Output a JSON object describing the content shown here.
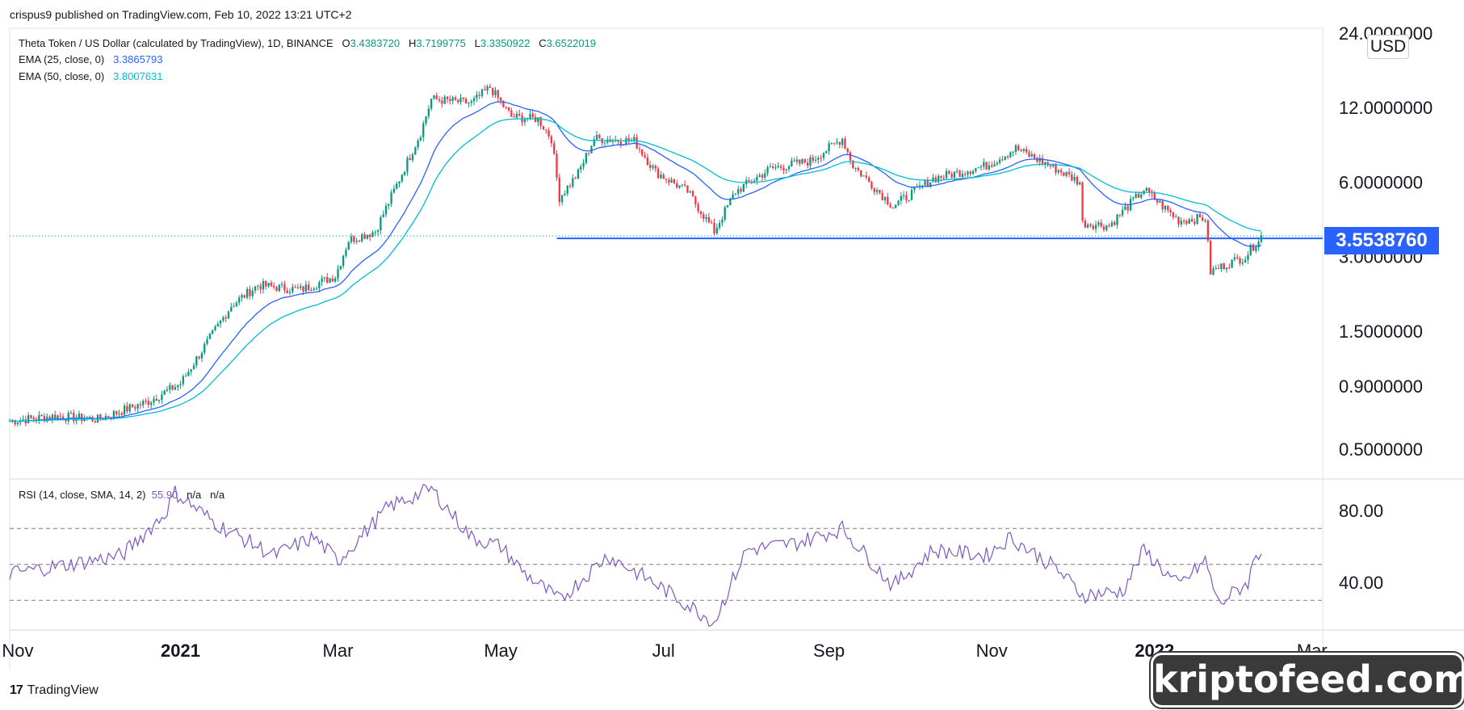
{
  "publisher": {
    "text": "crispus9 published on TradingView.com, Feb 10, 2022 13:21 UTC+2"
  },
  "legend": {
    "symbol": "Theta Token / US Dollar (calculated by TradingView), 1D, BINANCE",
    "o_label": "O",
    "o_value": "3.4383720",
    "h_label": "H",
    "h_value": "3.7199775",
    "l_label": "L",
    "l_value": "3.3350922",
    "c_label": "C",
    "c_value": "3.6522019",
    "ema25_label": "EMA (25, close, 0)",
    "ema25_value": "3.3865793",
    "ema50_label": "EMA (50, close, 0)",
    "ema50_value": "3.8007631",
    "rsi_label": "RSI (14, close, SMA, 14, 2)",
    "rsi_value": "55.90",
    "rsi_na1": "n/a",
    "rsi_na2": "n/a"
  },
  "price_axis": {
    "currency": "USD",
    "current_price": "3.5538760",
    "labels": [
      "24.0000000",
      "12.0000000",
      "6.0000000",
      "3.0000000",
      "1.5000000",
      "0.9000000",
      "0.5000000"
    ]
  },
  "rsi_axis": {
    "labels": [
      "80.00",
      "40.00"
    ]
  },
  "time_axis": {
    "labels": [
      {
        "text": "Nov",
        "bold": false
      },
      {
        "text": "2021",
        "bold": true
      },
      {
        "text": "Mar",
        "bold": false
      },
      {
        "text": "May",
        "bold": false
      },
      {
        "text": "Jul",
        "bold": false
      },
      {
        "text": "Sep",
        "bold": false
      },
      {
        "text": "Nov",
        "bold": false
      },
      {
        "text": "2022",
        "bold": true
      },
      {
        "text": "Mar",
        "bold": false
      }
    ]
  },
  "branding": {
    "tradingview": "TradingView",
    "watermark": "kriptofeed.com"
  },
  "colors": {
    "up": "#089981",
    "down": "#f23645",
    "ema25": "#2962ff",
    "ema50": "#00bcd4",
    "rsi": "#7e57c2",
    "support": "#2962ff"
  },
  "chart_data": {
    "type": "candlestick",
    "title": "Theta Token / US Dollar (calculated by TradingView), 1D, BINANCE",
    "y_scale": "log",
    "ylim": [
      0.42,
      26
    ],
    "support_level": 3.553876,
    "price_path": [
      [
        "2020-10-29",
        0.65
      ],
      [
        "2020-11-15",
        0.68
      ],
      [
        "2020-12-01",
        0.66
      ],
      [
        "2020-12-20",
        0.78
      ],
      [
        "2021-01-01",
        0.92
      ],
      [
        "2021-01-10",
        1.3
      ],
      [
        "2021-01-20",
        1.9
      ],
      [
        "2021-01-30",
        2.3
      ],
      [
        "2021-02-15",
        2.2
      ],
      [
        "2021-02-28",
        2.5
      ],
      [
        "2021-03-05",
        3.5
      ],
      [
        "2021-03-15",
        3.8
      ],
      [
        "2021-03-25",
        6.5
      ],
      [
        "2021-04-01",
        9.5
      ],
      [
        "2021-04-05",
        13.0
      ],
      [
        "2021-04-20",
        12.5
      ],
      [
        "2021-04-27",
        14.5
      ],
      [
        "2021-05-05",
        11.0
      ],
      [
        "2021-05-15",
        10.8
      ],
      [
        "2021-05-20",
        9.0
      ],
      [
        "2021-05-23",
        5.2
      ],
      [
        "2021-05-30",
        6.5
      ],
      [
        "2021-06-05",
        9.0
      ],
      [
        "2021-06-20",
        8.8
      ],
      [
        "2021-06-28",
        6.6
      ],
      [
        "2021-07-10",
        5.5
      ],
      [
        "2021-07-20",
        3.8
      ],
      [
        "2021-07-28",
        5.5
      ],
      [
        "2021-08-10",
        6.8
      ],
      [
        "2021-08-25",
        7.3
      ],
      [
        "2021-09-06",
        9.0
      ],
      [
        "2021-09-10",
        7.0
      ],
      [
        "2021-09-25",
        4.8
      ],
      [
        "2021-10-10",
        6.2
      ],
      [
        "2021-10-30",
        7.0
      ],
      [
        "2021-11-10",
        8.2
      ],
      [
        "2021-11-25",
        6.8
      ],
      [
        "2021-12-04",
        6.0
      ],
      [
        "2021-12-05",
        4.1
      ],
      [
        "2021-12-15",
        4.0
      ],
      [
        "2021-12-28",
        5.6
      ],
      [
        "2022-01-10",
        4.2
      ],
      [
        "2022-01-20",
        4.3
      ],
      [
        "2022-01-22",
        2.6
      ],
      [
        "2022-01-28",
        2.8
      ],
      [
        "2022-02-04",
        3.0
      ],
      [
        "2022-02-10",
        3.65
      ]
    ],
    "rsi": {
      "ylim": [
        10,
        100
      ],
      "levels": [
        70,
        50,
        30
      ],
      "path": [
        [
          "2020-10-29",
          45
        ],
        [
          "2020-11-20",
          50
        ],
        [
          "2020-12-10",
          55
        ],
        [
          "2020-12-26",
          78
        ],
        [
          "2020-12-30",
          90
        ],
        [
          "2021-01-15",
          72
        ],
        [
          "2021-02-05",
          55
        ],
        [
          "2021-02-20",
          65
        ],
        [
          "2021-03-01",
          52
        ],
        [
          "2021-03-20",
          82
        ],
        [
          "2021-04-05",
          92
        ],
        [
          "2021-04-20",
          65
        ],
        [
          "2021-05-01",
          60
        ],
        [
          "2021-05-10",
          45
        ],
        [
          "2021-05-23",
          30
        ],
        [
          "2021-06-10",
          55
        ],
        [
          "2021-06-25",
          42
        ],
        [
          "2021-07-20",
          18
        ],
        [
          "2021-08-01",
          58
        ],
        [
          "2021-08-20",
          62
        ],
        [
          "2021-09-06",
          70
        ],
        [
          "2021-09-25",
          38
        ],
        [
          "2021-10-10",
          58
        ],
        [
          "2021-10-30",
          55
        ],
        [
          "2021-11-08",
          65
        ],
        [
          "2021-11-25",
          48
        ],
        [
          "2021-12-05",
          33
        ],
        [
          "2021-12-20",
          35
        ],
        [
          "2021-12-28",
          58
        ],
        [
          "2022-01-10",
          38
        ],
        [
          "2022-01-20",
          52
        ],
        [
          "2022-01-25",
          28
        ],
        [
          "2022-02-05",
          40
        ],
        [
          "2022-02-08",
          56
        ],
        [
          "2022-02-10",
          55.9
        ]
      ]
    }
  }
}
